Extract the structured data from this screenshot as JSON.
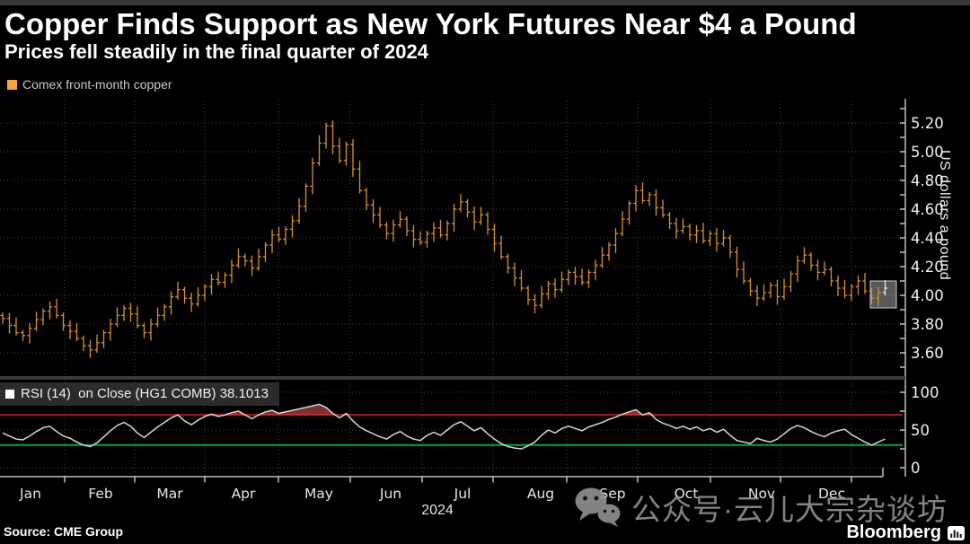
{
  "header": {
    "title": "Copper Finds Support as New York Futures Near $4 a Pound",
    "subtitle": "Prices fell steadily in the final quarter of 2024"
  },
  "legend": {
    "label": "Comex front-month copper"
  },
  "price_axis": {
    "title": "US dollars a pound",
    "tick_labels": [
      "5.20",
      "5.00",
      "4.80",
      "4.60",
      "4.40",
      "4.20",
      "4.00",
      "3.80",
      "3.60"
    ]
  },
  "rsi_panel": {
    "legend": "RSI (14)  on Close (HG1 COMB) 38.1013",
    "tick_labels": [
      "100",
      "50",
      "0"
    ]
  },
  "x_axis": {
    "months": [
      "Jan",
      "Feb",
      "Mar",
      "Apr",
      "May",
      "Jun",
      "Jul",
      "Aug",
      "Sep",
      "Oct",
      "Nov",
      "Dec"
    ],
    "year": "2024"
  },
  "footer": {
    "source": "Source: CME Group",
    "brand": "Bloomberg"
  },
  "watermark": {
    "text": "公众号·云儿大宗杂谈坊"
  },
  "colors": {
    "background": "#000000",
    "bar_orange": "#d98f35",
    "legend_orange": "#f3a43c",
    "rsi_line": "#d6d6d6",
    "overbought_red": "#8f1a1a",
    "oversold_green": "#00a551",
    "selected_bar": "#ececec"
  },
  "chart_data": [
    {
      "type": "ohlc-bar",
      "title": "Comex front-month copper",
      "ylabel": "US dollars a pound",
      "unit": "USD per pound",
      "year": "2024",
      "x_months": [
        "Jan",
        "Feb",
        "Mar",
        "Apr",
        "May",
        "Jun",
        "Jul",
        "Aug",
        "Sep",
        "Oct",
        "Nov",
        "Dec"
      ],
      "points_per_month": 11,
      "ylim": [
        3.5,
        5.3
      ],
      "y_ticks": [
        5.2,
        5.0,
        4.8,
        4.6,
        4.4,
        4.2,
        4.0,
        3.8,
        3.6
      ],
      "closes": [
        3.84,
        3.79,
        3.74,
        3.72,
        3.77,
        3.83,
        3.89,
        3.92,
        3.86,
        3.79,
        3.75,
        3.7,
        3.65,
        3.62,
        3.67,
        3.74,
        3.8,
        3.86,
        3.91,
        3.87,
        3.79,
        3.74,
        3.8,
        3.86,
        3.92,
        3.99,
        4.04,
        3.98,
        3.94,
        4.0,
        4.06,
        4.11,
        4.09,
        4.14,
        4.21,
        4.27,
        4.24,
        4.19,
        4.27,
        4.35,
        4.42,
        4.39,
        4.46,
        4.52,
        4.62,
        4.76,
        4.92,
        5.06,
        5.18,
        5.04,
        4.94,
        5.05,
        4.88,
        4.73,
        4.63,
        4.56,
        4.49,
        4.43,
        4.49,
        4.53,
        4.45,
        4.39,
        4.37,
        4.43,
        4.47,
        4.42,
        4.5,
        4.6,
        4.65,
        4.58,
        4.51,
        4.56,
        4.46,
        4.36,
        4.27,
        4.19,
        4.12,
        4.05,
        3.97,
        3.93,
        4.01,
        4.08,
        4.04,
        4.11,
        4.16,
        4.13,
        4.09,
        4.16,
        4.21,
        4.28,
        4.35,
        4.43,
        4.53,
        4.64,
        4.73,
        4.66,
        4.7,
        4.61,
        4.56,
        4.5,
        4.45,
        4.48,
        4.42,
        4.45,
        4.38,
        4.43,
        4.36,
        4.4,
        4.3,
        4.18,
        4.1,
        4.03,
        3.98,
        4.02,
        4.07,
        3.99,
        4.06,
        4.15,
        4.24,
        4.28,
        4.21,
        4.16,
        4.18,
        4.1,
        4.05,
        4.0,
        4.06,
        4.1,
        4.03,
        3.98,
        4.02,
        4.05
      ],
      "last_close": 4.05
    },
    {
      "type": "line",
      "title": "RSI (14) on Close (HG1 COMB)",
      "last_value": 38.1013,
      "ylim": [
        0,
        100
      ],
      "y_ticks": [
        100,
        50,
        0
      ],
      "overbought_level": 70,
      "oversold_level": 30,
      "values": [
        46,
        42,
        38,
        37,
        42,
        48,
        53,
        55,
        48,
        42,
        39,
        34,
        30,
        28,
        33,
        41,
        49,
        56,
        60,
        55,
        46,
        40,
        47,
        54,
        60,
        66,
        70,
        62,
        57,
        63,
        68,
        71,
        68,
        70,
        73,
        75,
        70,
        65,
        70,
        74,
        76,
        72,
        74,
        76,
        78,
        80,
        82,
        84,
        80,
        72,
        66,
        72,
        62,
        54,
        49,
        45,
        41,
        38,
        44,
        48,
        42,
        38,
        36,
        43,
        47,
        43,
        50,
        57,
        61,
        55,
        49,
        53,
        45,
        38,
        32,
        28,
        26,
        25,
        29,
        34,
        43,
        50,
        46,
        52,
        55,
        52,
        49,
        54,
        57,
        60,
        64,
        67,
        71,
        74,
        77,
        70,
        73,
        64,
        59,
        56,
        52,
        55,
        51,
        54,
        49,
        52,
        47,
        51,
        43,
        36,
        34,
        32,
        39,
        36,
        34,
        38,
        45,
        52,
        56,
        53,
        48,
        44,
        41,
        46,
        49,
        51,
        44,
        39,
        34,
        30,
        34,
        38.1
      ]
    }
  ]
}
